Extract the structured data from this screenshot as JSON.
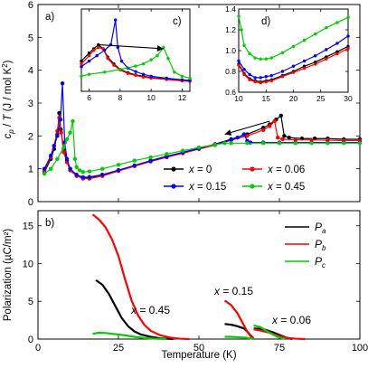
{
  "figure": {
    "panel_a_label": "a)",
    "panel_b_label": "b)",
    "inset_c_label": "c)",
    "inset_d_label": "d)",
    "a_ylabel": "c_p / T (J / mol K^2)",
    "b_ylabel": "Polarization (µC/m²)",
    "xlabel": "Temperature (K)",
    "a_legend": [
      {
        "label": "x = 0",
        "color": "#000000"
      },
      {
        "label": "x = 0.06",
        "color": "#ff0000"
      },
      {
        "label": "x = 0.15",
        "color": "#0000ff"
      },
      {
        "label": "x = 0.45",
        "color": "#00cc00"
      }
    ],
    "b_legend": [
      {
        "label": "P_a",
        "color": "#000000"
      },
      {
        "label": "P_b",
        "color": "#ff0000"
      },
      {
        "label": "P_c",
        "color": "#00cc00"
      }
    ],
    "b_annotations": [
      "x = 0.45",
      "x = 0.15",
      "x = 0.06"
    ]
  },
  "chart_data": [
    {
      "id": "panel-a",
      "type": "scatter",
      "xlabel": "Temperature (K)",
      "ylabel": "c_p / T (J / mol K^2)",
      "xlim": [
        0,
        100
      ],
      "ylim": [
        0,
        6
      ],
      "xticks": [
        0,
        25,
        50,
        75,
        100
      ],
      "yticks": [
        0,
        1,
        2,
        3,
        4,
        5,
        6
      ],
      "legend_position": "lower-right",
      "series": [
        {
          "name": "x = 0",
          "color": "#000000",
          "x": [
            2,
            4,
            5,
            6,
            6.6,
            7.1,
            8,
            9,
            10,
            12,
            14,
            16,
            20,
            25,
            30,
            35,
            40,
            45,
            50,
            55,
            60,
            65,
            70,
            72,
            74,
            75.5,
            76.5,
            78,
            82,
            86,
            90,
            95,
            100
          ],
          "y": [
            0.9,
            1.3,
            1.6,
            2.05,
            2.7,
            2.2,
            1.6,
            1.25,
            1.0,
            0.8,
            0.72,
            0.72,
            0.8,
            0.95,
            1.1,
            1.25,
            1.38,
            1.5,
            1.62,
            1.75,
            1.9,
            2.05,
            2.25,
            2.35,
            2.5,
            2.62,
            2.0,
            1.95,
            1.92,
            1.92,
            1.92,
            1.9,
            1.9
          ]
        },
        {
          "name": "x = 0.06",
          "color": "#ff0000",
          "x": [
            2,
            4,
            5,
            6,
            6.6,
            7.2,
            8,
            9,
            10,
            12,
            14,
            16,
            20,
            25,
            30,
            35,
            40,
            45,
            50,
            55,
            60,
            65,
            70,
            72,
            73.5,
            74.5,
            76,
            80,
            85,
            90,
            95,
            100
          ],
          "y": [
            0.95,
            1.35,
            1.7,
            2.15,
            2.55,
            2.1,
            1.5,
            1.2,
            0.95,
            0.78,
            0.7,
            0.7,
            0.78,
            0.93,
            1.08,
            1.22,
            1.35,
            1.47,
            1.6,
            1.72,
            1.87,
            2.0,
            2.18,
            2.3,
            2.45,
            1.95,
            1.9,
            1.88,
            1.88,
            1.87,
            1.86,
            1.86
          ]
        },
        {
          "name": "x = 0.15",
          "color": "#0000ff",
          "x": [
            2,
            4,
            5,
            6,
            7,
            7.6,
            8.3,
            9,
            10,
            12,
            14,
            16,
            20,
            25,
            30,
            35,
            40,
            45,
            50,
            55,
            60,
            62,
            64,
            65,
            66,
            70,
            75,
            80,
            85,
            90,
            95,
            100
          ],
          "y": [
            1.0,
            1.4,
            1.7,
            2.0,
            2.5,
            3.6,
            1.8,
            1.3,
            1.0,
            0.82,
            0.74,
            0.75,
            0.82,
            0.96,
            1.1,
            1.24,
            1.37,
            1.5,
            1.62,
            1.74,
            1.88,
            1.95,
            2.05,
            1.85,
            1.8,
            1.8,
            1.8,
            1.8,
            1.8,
            1.8,
            1.8,
            1.8
          ]
        },
        {
          "name": "x = 0.45",
          "color": "#00cc00",
          "x": [
            2,
            4,
            6,
            8,
            9,
            10,
            10.8,
            11.5,
            12,
            13,
            14,
            16,
            20,
            25,
            30,
            35,
            40,
            45,
            50,
            55,
            58,
            60,
            65,
            70,
            75,
            80,
            85,
            90,
            95,
            100
          ],
          "y": [
            0.85,
            1.0,
            1.3,
            1.65,
            1.9,
            2.1,
            2.45,
            1.3,
            1.05,
            0.95,
            0.9,
            0.92,
            1.0,
            1.12,
            1.25,
            1.35,
            1.45,
            1.55,
            1.65,
            1.73,
            1.78,
            1.78,
            1.78,
            1.78,
            1.78,
            1.78,
            1.78,
            1.78,
            1.78,
            1.78
          ]
        }
      ],
      "arrows": [
        {
          "from": [
            72,
            2.45
          ],
          "to": [
            58,
            2.05
          ]
        }
      ]
    },
    {
      "id": "inset-c",
      "type": "scatter",
      "xlim": [
        5.5,
        12.5
      ],
      "ylim": [
        1.0,
        4.0
      ],
      "xticks": [
        6,
        8,
        10,
        12
      ],
      "series": [
        {
          "name": "x = 0",
          "color": "#000000",
          "x": [
            5.5,
            6,
            6.3,
            6.6,
            6.9,
            7.2,
            7.6,
            8,
            8.5,
            9,
            9.5,
            10,
            11,
            12,
            12.5
          ],
          "y": [
            2.1,
            2.4,
            2.55,
            2.7,
            2.55,
            2.25,
            2.0,
            1.8,
            1.68,
            1.6,
            1.55,
            1.5,
            1.45,
            1.4,
            1.38
          ]
        },
        {
          "name": "x = 0.06",
          "color": "#ff0000",
          "x": [
            5.5,
            6,
            6.3,
            6.6,
            6.9,
            7.2,
            7.6,
            8,
            8.5,
            9,
            9.5,
            10,
            11,
            12,
            12.5
          ],
          "y": [
            2.0,
            2.3,
            2.5,
            2.6,
            2.55,
            2.2,
            1.95,
            1.78,
            1.65,
            1.58,
            1.52,
            1.48,
            1.43,
            1.38,
            1.36
          ]
        },
        {
          "name": "x = 0.15",
          "color": "#0000ff",
          "x": [
            5.5,
            6,
            6.5,
            7,
            7.4,
            7.7,
            7.85,
            8.1,
            8.5,
            9,
            9.5,
            10,
            11,
            12,
            12.5
          ],
          "y": [
            1.9,
            2.1,
            2.3,
            2.5,
            2.7,
            3.6,
            2.6,
            2.1,
            1.85,
            1.72,
            1.62,
            1.55,
            1.48,
            1.42,
            1.4
          ]
        },
        {
          "name": "x = 0.45",
          "color": "#00cc00",
          "x": [
            5.5,
            6,
            7,
            8,
            9,
            9.5,
            10,
            10.4,
            10.8,
            11.1,
            11.5,
            12,
            12.5
          ],
          "y": [
            1.55,
            1.62,
            1.7,
            1.8,
            1.92,
            2.0,
            2.15,
            2.3,
            2.6,
            2.2,
            1.7,
            1.55,
            1.48
          ]
        }
      ],
      "arrows": [
        {
          "from": [
            6.6,
            2.7
          ],
          "to": [
            10.8,
            2.55
          ]
        }
      ]
    },
    {
      "id": "inset-d",
      "type": "scatter",
      "xlim": [
        10,
        30
      ],
      "ylim": [
        0.6,
        1.4
      ],
      "xticks": [
        10,
        15,
        20,
        25,
        30
      ],
      "yticks": [
        0.6,
        0.8,
        1.0,
        1.2,
        1.4
      ],
      "series": [
        {
          "name": "x = 0",
          "color": "#000000",
          "x": [
            10,
            11,
            12,
            13,
            14,
            15,
            16,
            18,
            20,
            22,
            24,
            26,
            28,
            30
          ],
          "y": [
            0.87,
            0.78,
            0.73,
            0.71,
            0.7,
            0.71,
            0.72,
            0.76,
            0.8,
            0.85,
            0.89,
            0.94,
            0.99,
            1.04
          ]
        },
        {
          "name": "x = 0.06",
          "color": "#ff0000",
          "x": [
            10,
            11,
            12,
            13,
            14,
            15,
            16,
            18,
            20,
            22,
            24,
            26,
            28,
            30
          ],
          "y": [
            0.86,
            0.77,
            0.72,
            0.7,
            0.69,
            0.7,
            0.71,
            0.75,
            0.79,
            0.83,
            0.87,
            0.92,
            0.97,
            1.02
          ]
        },
        {
          "name": "x = 0.15",
          "color": "#0000ff",
          "x": [
            10,
            11,
            12,
            13,
            14,
            15,
            16,
            18,
            20,
            22,
            24,
            26,
            28,
            30
          ],
          "y": [
            0.9,
            0.82,
            0.77,
            0.74,
            0.74,
            0.75,
            0.76,
            0.8,
            0.85,
            0.9,
            0.95,
            1.01,
            1.07,
            1.14
          ]
        },
        {
          "name": "x = 0.45",
          "color": "#00cc00",
          "x": [
            10,
            10.5,
            11,
            12,
            13,
            14,
            15,
            16,
            18,
            20,
            22,
            24,
            26,
            28,
            30
          ],
          "y": [
            1.33,
            1.2,
            1.05,
            0.97,
            0.93,
            0.92,
            0.92,
            0.93,
            0.98,
            1.04,
            1.1,
            1.16,
            1.22,
            1.27,
            1.32
          ]
        }
      ]
    },
    {
      "id": "panel-b",
      "type": "line",
      "xlabel": "Temperature (K)",
      "ylabel": "Polarization (µC/m²)",
      "xlim": [
        0,
        100
      ],
      "ylim": [
        0,
        17
      ],
      "xticks": [
        0,
        25,
        50,
        75,
        100
      ],
      "yticks": [
        0,
        5,
        10,
        15
      ],
      "legend_position": "top-right",
      "series": [
        {
          "name": "P_a",
          "group": "x = 0.45",
          "color": "#000000",
          "x": [
            18,
            20,
            22,
            24,
            26,
            28,
            30,
            32,
            35,
            38,
            42
          ],
          "y": [
            7.8,
            7.2,
            6.0,
            4.4,
            2.8,
            1.7,
            1.0,
            0.6,
            0.3,
            0.1,
            0.0
          ]
        },
        {
          "name": "P_b",
          "group": "x = 0.45",
          "color": "#ff0000",
          "x": [
            17,
            19,
            21,
            23,
            25,
            27,
            29,
            31,
            33,
            35,
            38,
            41,
            44,
            47
          ],
          "y": [
            16.5,
            15.8,
            14.8,
            13.2,
            11.0,
            8.0,
            5.2,
            3.2,
            1.9,
            1.1,
            0.5,
            0.2,
            0.05,
            0.0
          ]
        },
        {
          "name": "P_c",
          "group": "x = 0.45",
          "color": "#00cc00",
          "x": [
            17,
            19,
            21,
            24,
            27,
            30,
            33,
            36,
            40
          ],
          "y": [
            0.7,
            0.85,
            0.8,
            0.65,
            0.5,
            0.3,
            0.15,
            0.05,
            0.0
          ]
        },
        {
          "name": "P_a",
          "group": "x = 0.15",
          "color": "#000000",
          "x": [
            58,
            60,
            62,
            64,
            65,
            66,
            67
          ],
          "y": [
            2.0,
            1.9,
            1.7,
            1.4,
            1.0,
            0.5,
            0.1
          ]
        },
        {
          "name": "P_b",
          "group": "x = 0.15",
          "color": "#ff0000",
          "x": [
            58,
            60,
            62,
            63,
            64,
            65,
            66,
            67
          ],
          "y": [
            5.1,
            4.5,
            3.4,
            2.6,
            1.8,
            1.0,
            0.4,
            0.1
          ]
        },
        {
          "name": "P_c",
          "group": "x = 0.15",
          "color": "#00cc00",
          "x": [
            58,
            60,
            62,
            64,
            65,
            66,
            67
          ],
          "y": [
            0.3,
            0.3,
            0.25,
            0.2,
            0.15,
            0.1,
            0.0
          ]
        },
        {
          "name": "P_a",
          "group": "x = 0.06",
          "color": "#000000",
          "x": [
            67,
            69,
            71,
            73,
            75,
            77,
            79
          ],
          "y": [
            1.4,
            1.35,
            1.2,
            0.9,
            0.55,
            0.2,
            0.0
          ]
        },
        {
          "name": "P_b",
          "group": "x = 0.06",
          "color": "#ff0000",
          "x": [
            67,
            69,
            71,
            73,
            75,
            77,
            80,
            83
          ],
          "y": [
            1.3,
            1.15,
            0.95,
            0.7,
            0.4,
            0.15,
            0.05,
            0.0
          ]
        },
        {
          "name": "P_c",
          "group": "x = 0.06",
          "color": "#00cc00",
          "x": [
            67,
            69,
            71,
            73,
            75,
            77
          ],
          "y": [
            1.8,
            1.6,
            1.1,
            0.6,
            0.2,
            0.0
          ]
        }
      ]
    }
  ]
}
